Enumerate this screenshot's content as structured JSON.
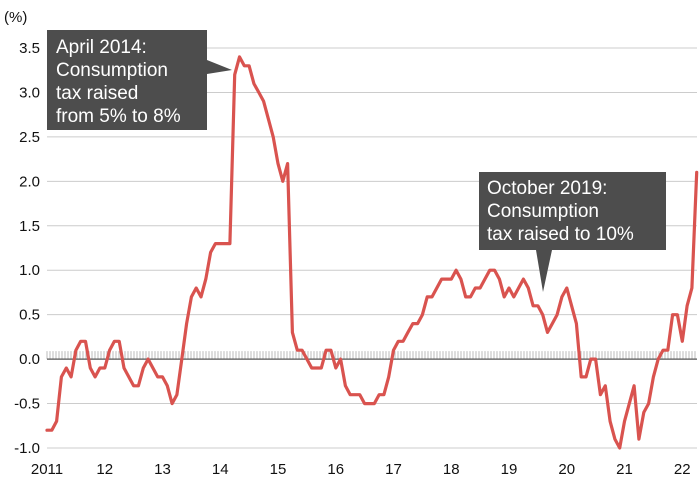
{
  "chart_data": {
    "type": "line",
    "unit_label": "(%)",
    "x_tick_labels": [
      "2011",
      "12",
      "13",
      "14",
      "15",
      "16",
      "17",
      "18",
      "19",
      "20",
      "21",
      "22"
    ],
    "x_start_year": 2011,
    "y_ticks": [
      3.5,
      3.0,
      2.5,
      2.0,
      1.5,
      1.0,
      0.5,
      0.0,
      -0.5,
      -1.0
    ],
    "y_tick_labels": [
      "3.5",
      "3.0",
      "2.5",
      "2.0",
      "1.5",
      "1.0",
      "0.5",
      "0.0",
      "-0.5",
      "-1.0"
    ],
    "ylim": [
      -1.0,
      3.5
    ],
    "grid": true,
    "colors": {
      "line": "#d9534f",
      "grid": "#cccccc",
      "zero_line": "#555555",
      "annotation_bg": "#4d4d4d",
      "annotation_text": "#ffffff"
    },
    "series": [
      {
        "x": [
          "2011-01",
          "2011-02",
          "2011-03",
          "2011-04",
          "2011-05",
          "2011-06",
          "2011-07",
          "2011-08",
          "2011-09",
          "2011-10",
          "2011-11",
          "2011-12",
          "2012-01",
          "2012-02",
          "2012-03",
          "2012-04",
          "2012-05",
          "2012-06",
          "2012-07",
          "2012-08",
          "2012-09",
          "2012-10",
          "2012-11",
          "2012-12",
          "2013-01",
          "2013-02",
          "2013-03",
          "2013-04",
          "2013-05",
          "2013-06",
          "2013-07",
          "2013-08",
          "2013-09",
          "2013-10",
          "2013-11",
          "2013-12",
          "2014-01",
          "2014-02",
          "2014-03",
          "2014-04",
          "2014-05",
          "2014-06",
          "2014-07",
          "2014-08",
          "2014-09",
          "2014-10",
          "2014-11",
          "2014-12",
          "2015-01",
          "2015-02",
          "2015-03",
          "2015-04",
          "2015-05",
          "2015-06",
          "2015-07",
          "2015-08",
          "2015-09",
          "2015-10",
          "2015-11",
          "2015-12",
          "2016-01",
          "2016-02",
          "2016-03",
          "2016-04",
          "2016-05",
          "2016-06",
          "2016-07",
          "2016-08",
          "2016-09",
          "2016-10",
          "2016-11",
          "2016-12",
          "2017-01",
          "2017-02",
          "2017-03",
          "2017-04",
          "2017-05",
          "2017-06",
          "2017-07",
          "2017-08",
          "2017-09",
          "2017-10",
          "2017-11",
          "2017-12",
          "2018-01",
          "2018-02",
          "2018-03",
          "2018-04",
          "2018-05",
          "2018-06",
          "2018-07",
          "2018-08",
          "2018-09",
          "2018-10",
          "2018-11",
          "2018-12",
          "2019-01",
          "2019-02",
          "2019-03",
          "2019-04",
          "2019-05",
          "2019-06",
          "2019-07",
          "2019-08",
          "2019-09",
          "2019-10",
          "2019-11",
          "2019-12",
          "2020-01",
          "2020-02",
          "2020-03",
          "2020-04",
          "2020-05",
          "2020-06",
          "2020-07",
          "2020-08",
          "2020-09",
          "2020-10",
          "2020-11",
          "2020-12",
          "2021-01",
          "2021-02",
          "2021-03",
          "2021-04",
          "2021-05",
          "2021-06",
          "2021-07",
          "2021-08",
          "2021-09",
          "2021-10",
          "2021-11",
          "2021-12",
          "2022-01",
          "2022-02",
          "2022-03",
          "2022-04"
        ],
        "y": [
          -0.8,
          -0.8,
          -0.7,
          -0.2,
          -0.1,
          -0.2,
          0.1,
          0.2,
          0.2,
          -0.1,
          -0.2,
          -0.1,
          -0.1,
          0.1,
          0.2,
          0.2,
          -0.1,
          -0.2,
          -0.3,
          -0.3,
          -0.1,
          0.0,
          -0.1,
          -0.2,
          -0.2,
          -0.3,
          -0.5,
          -0.4,
          0.0,
          0.4,
          0.7,
          0.8,
          0.7,
          0.9,
          1.2,
          1.3,
          1.3,
          1.3,
          1.3,
          3.2,
          3.4,
          3.3,
          3.3,
          3.1,
          3.0,
          2.9,
          2.7,
          2.5,
          2.2,
          2.0,
          2.2,
          0.3,
          0.1,
          0.1,
          0.0,
          -0.1,
          -0.1,
          -0.1,
          0.1,
          0.1,
          -0.1,
          0.0,
          -0.3,
          -0.4,
          -0.4,
          -0.4,
          -0.5,
          -0.5,
          -0.5,
          -0.4,
          -0.4,
          -0.2,
          0.1,
          0.2,
          0.2,
          0.3,
          0.4,
          0.4,
          0.5,
          0.7,
          0.7,
          0.8,
          0.9,
          0.9,
          0.9,
          1.0,
          0.9,
          0.7,
          0.7,
          0.8,
          0.8,
          0.9,
          1.0,
          1.0,
          0.9,
          0.7,
          0.8,
          0.7,
          0.8,
          0.9,
          0.8,
          0.6,
          0.6,
          0.5,
          0.3,
          0.4,
          0.5,
          0.7,
          0.8,
          0.6,
          0.4,
          -0.2,
          -0.2,
          0.0,
          0.0,
          -0.4,
          -0.3,
          -0.7,
          -0.9,
          -1.0,
          -0.7,
          -0.5,
          -0.3,
          -0.9,
          -0.6,
          -0.5,
          -0.2,
          0.0,
          0.1,
          0.1,
          0.5,
          0.5,
          0.2,
          0.6,
          0.8,
          2.1
        ]
      }
    ],
    "annotations": [
      {
        "lines": [
          "April 2014:",
          "Consumption",
          "tax raised",
          "from 5% to 8%"
        ],
        "points_to": "2014-04"
      },
      {
        "lines": [
          "October 2019:",
          "Consumption",
          "tax raised to 10%"
        ],
        "points_to": "2019-10"
      }
    ]
  }
}
